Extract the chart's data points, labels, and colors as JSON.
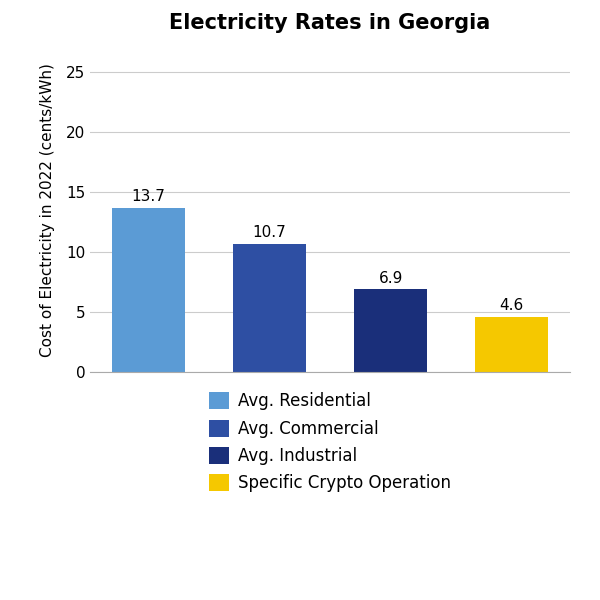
{
  "title": "Electricity Rates in Georgia",
  "ylabel": "Cost of Electricity in 2022 (cents/kWh)",
  "categories": [
    "Avg. Residential",
    "Avg. Commercial",
    "Avg. Industrial",
    "Specific Crypto Operation"
  ],
  "values": [
    13.7,
    10.7,
    6.9,
    4.6
  ],
  "bar_colors": [
    "#5B9BD5",
    "#2E4FA3",
    "#1A2F7A",
    "#F5C800"
  ],
  "ylim": [
    0,
    27
  ],
  "yticks": [
    0,
    5,
    10,
    15,
    20,
    25
  ],
  "title_fontsize": 15,
  "label_fontsize": 11,
  "value_fontsize": 11,
  "legend_fontsize": 12,
  "background_color": "#ffffff",
  "legend_labels": [
    "Avg. Residential",
    "Avg. Commercial",
    "Avg. Industrial",
    "Specific Crypto Operation"
  ],
  "legend_colors": [
    "#5B9BD5",
    "#2E4FA3",
    "#1A2F7A",
    "#F5C800"
  ]
}
